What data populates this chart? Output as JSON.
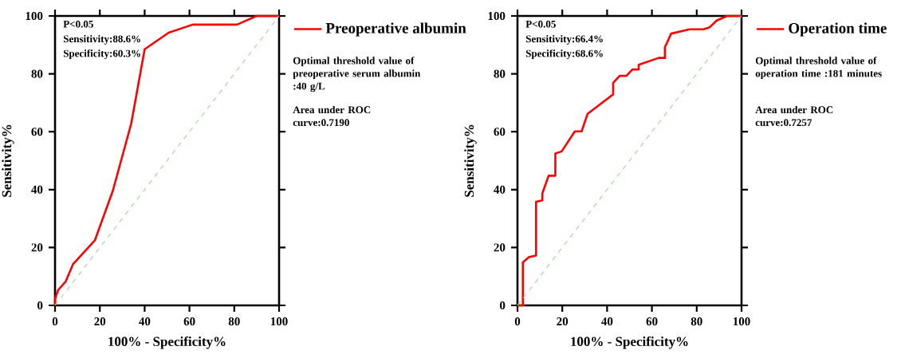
{
  "chart_data": [
    {
      "type": "line",
      "xlabel": "100% - Specificity%",
      "ylabel": "Sensitivity%",
      "xlim": [
        0,
        100
      ],
      "ylim": [
        0,
        100
      ],
      "xticks": [
        0,
        20,
        40,
        60,
        80,
        100
      ],
      "yticks": [
        0,
        20,
        40,
        60,
        80,
        100
      ],
      "legend": "right",
      "marker": "none",
      "annotations": [
        "P<0.05",
        "Sensitivity:88.6%",
        "Specificity:60.3%",
        "Optimal threshold value of preoperative serum albumin :40 g/L",
        "Area under ROC curve:0.7190"
      ],
      "series": [
        {
          "name": "Preoperative albumin",
          "color": "#ff0000",
          "line_style": "solid",
          "x": [
            0,
            0,
            1.4,
            4.8,
            8,
            17.8,
            25.8,
            34,
            40,
            50.7,
            61.4,
            81.2,
            90,
            100
          ],
          "values": [
            0,
            2.3,
            5.3,
            8.3,
            14.2,
            22.5,
            39.6,
            62.8,
            88.5,
            94.2,
            97,
            97,
            100,
            100
          ]
        },
        {
          "color": "#a8d8a0",
          "line_style": "dashed",
          "x": [
            0,
            100
          ],
          "values": [
            0,
            100
          ]
        }
      ]
    },
    {
      "type": "line",
      "xlabel": "100% - Specificity%",
      "ylabel": "Sensitivity%",
      "xlim": [
        0,
        100
      ],
      "ylim": [
        0,
        100
      ],
      "xticks": [
        0,
        20,
        40,
        60,
        80,
        100
      ],
      "yticks": [
        0,
        20,
        40,
        60,
        80,
        100
      ],
      "legend": "right",
      "marker": "none",
      "annotations": [
        "P<0.05",
        "Sensitivity:66.4%",
        "Specificity:68.6%",
        "Optimal threshold value of operation time :181 minutes",
        "Area under ROC curve:0.7257"
      ],
      "series": [
        {
          "name": "Operation time",
          "color": "#ff0000",
          "line_style": "solid",
          "x": [
            0,
            2.4,
            2.4,
            5.2,
            8.3,
            8.3,
            11.1,
            11.1,
            13.9,
            16.9,
            16.9,
            19.7,
            25.6,
            28.6,
            31.3,
            42.7,
            42.7,
            45.6,
            48.6,
            51.3,
            54.1,
            54.1,
            63,
            65.8,
            65.8,
            68.6,
            76.9,
            83,
            85.8,
            88.9,
            93.6,
            100
          ],
          "values": [
            0,
            0,
            14.9,
            16.7,
            17.2,
            35.8,
            36.3,
            38.7,
            44.8,
            44.8,
            52.5,
            53.2,
            60.1,
            60.1,
            66.2,
            72.9,
            76.9,
            79.3,
            79.3,
            81.5,
            81.5,
            83.1,
            85.5,
            85.5,
            89.2,
            93.9,
            95.4,
            95.4,
            96.1,
            98.4,
            100,
            100
          ]
        },
        {
          "color": "#a8d8a0",
          "line_style": "dashed",
          "x": [
            0,
            100
          ],
          "values": [
            0,
            100
          ]
        }
      ]
    }
  ]
}
